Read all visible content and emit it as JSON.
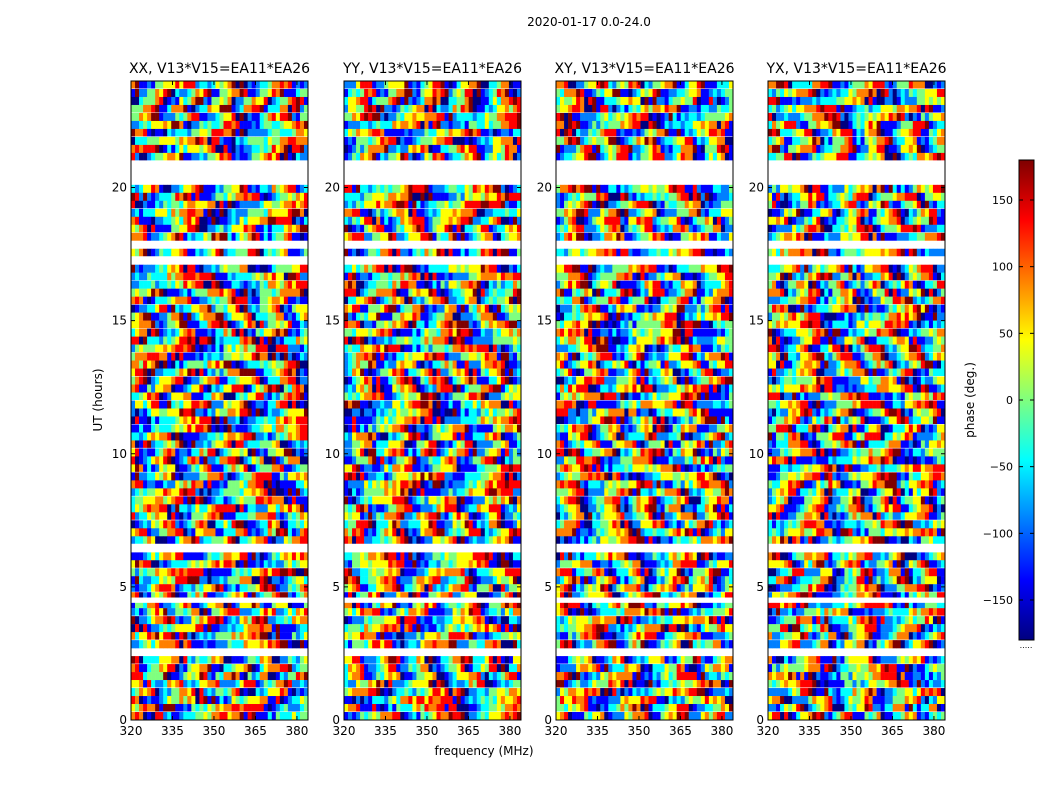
{
  "figure": {
    "suptitle": "2020-01-17 0.0-24.0",
    "ylabel": "UT (hours)",
    "xlabel": "frequency (MHz)"
  },
  "chart_data": {
    "type": "heatmap",
    "description_values": "phase waterfall panels",
    "panels": [
      {
        "title": "XX, V13*V15=EA11*EA26",
        "pol": "XX"
      },
      {
        "title": "YY, V13*V15=EA11*EA26",
        "pol": "YY"
      },
      {
        "title": "XY, V13*V15=EA11*EA26",
        "pol": "XY"
      },
      {
        "title": "YX, V13*V15=EA11*EA26",
        "pol": "YX"
      }
    ],
    "x_range": [
      320,
      384
    ],
    "x_ticks": [
      320,
      335,
      350,
      365,
      380
    ],
    "y_range": [
      0,
      24
    ],
    "y_ticks": [
      0,
      5,
      10,
      15,
      20
    ],
    "colorbar": {
      "label": "phase (deg.)",
      "range": [
        -180,
        180
      ],
      "ticks": [
        150,
        100,
        50,
        0,
        -50,
        -100,
        -150
      ],
      "tick_labels": [
        "150",
        "100",
        "50",
        "0",
        "−50",
        "−100",
        "−150"
      ],
      "colormap": [
        "#00007f",
        "#0000ff",
        "#007fff",
        "#00ffff",
        "#7fff7f",
        "#ffff00",
        "#ff7f00",
        "#ff0000",
        "#7f0000"
      ],
      "footnote": "....."
    },
    "flagged_hours": [
      [
        21.0,
        20.2
      ],
      [
        18.0,
        17.8
      ],
      [
        17.4,
        17.2
      ],
      [
        6.5,
        6.3
      ],
      [
        4.6,
        4.4
      ],
      [
        2.6,
        2.5
      ]
    ]
  }
}
